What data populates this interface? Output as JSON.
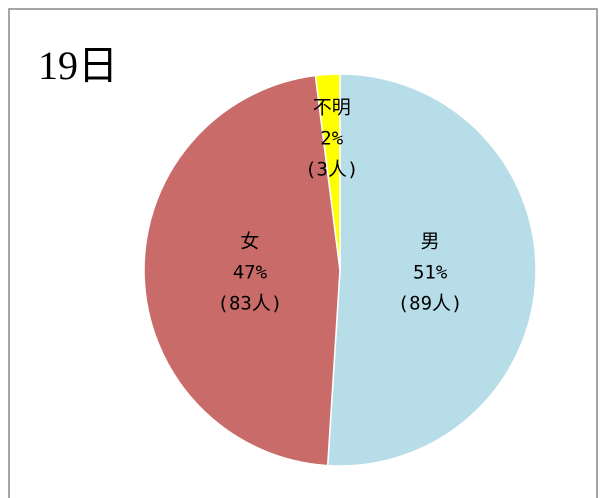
{
  "chart_data": {
    "type": "pie",
    "title": "19日",
    "categories": [
      "男",
      "女",
      "不明"
    ],
    "values": [
      51,
      47,
      2
    ],
    "value_labels": [
      "51%",
      "47%",
      "2%"
    ],
    "count_labels": [
      "(89人)",
      "(83人)",
      "(3人)"
    ],
    "colors": [
      "#b7dde8",
      "#c96b69",
      "#ffff00"
    ]
  }
}
